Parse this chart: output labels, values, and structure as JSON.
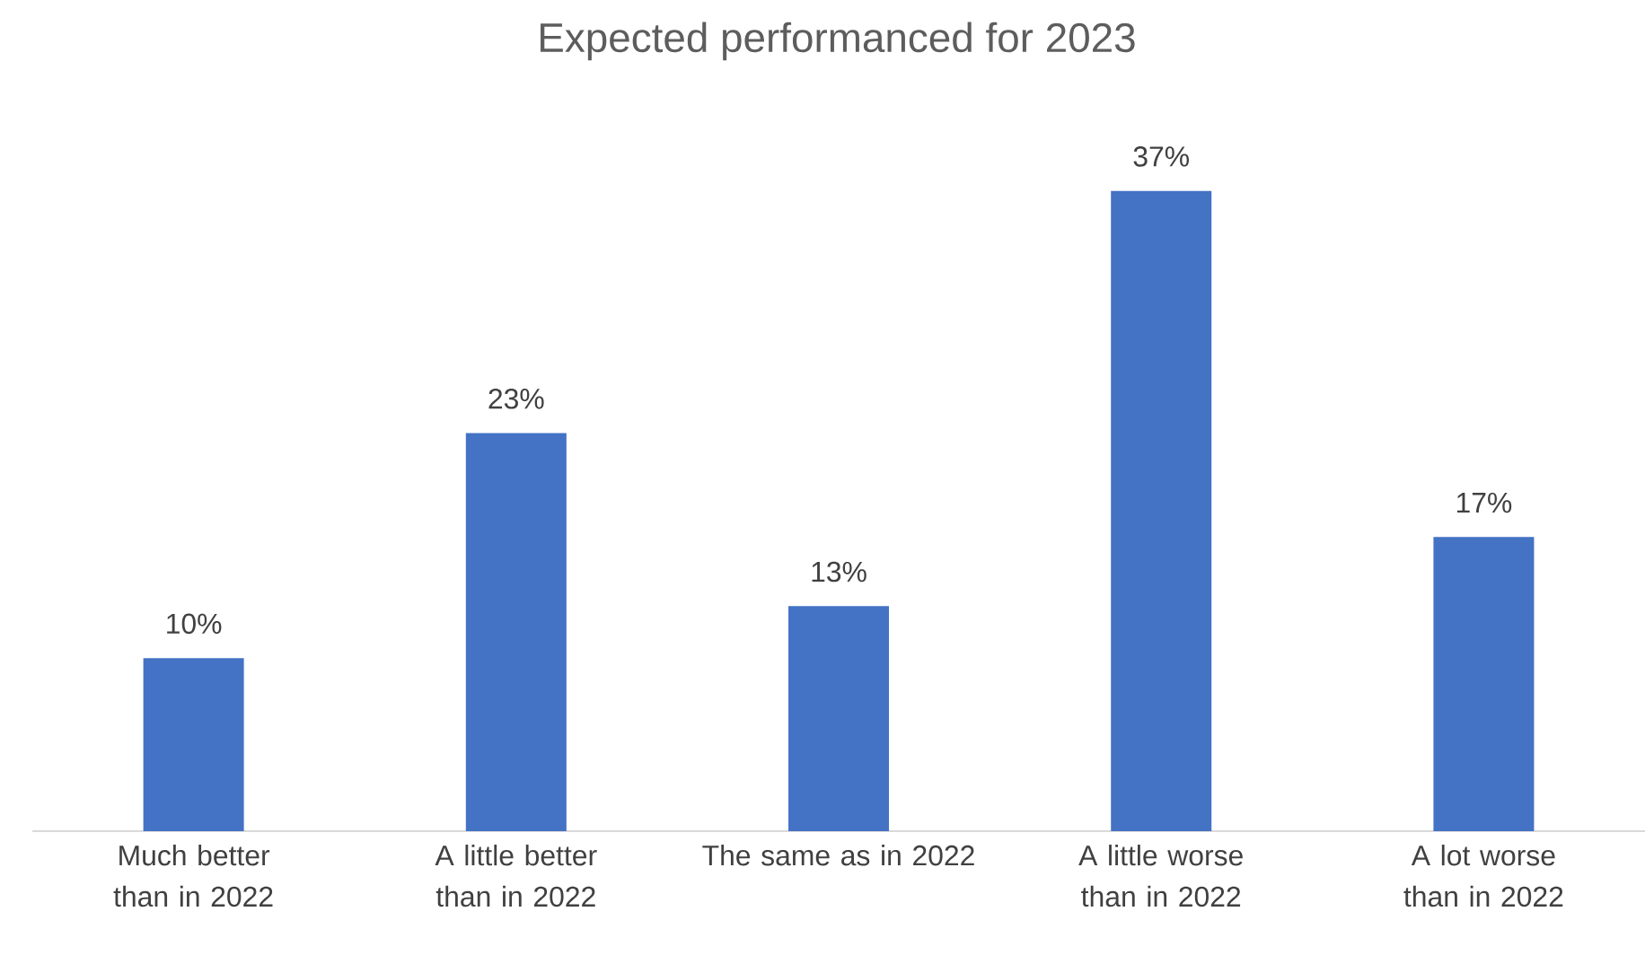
{
  "chart_data": {
    "type": "bar",
    "title": "Expected performanced for 2023",
    "categories": [
      "Much better than in 2022",
      "A little better than in 2022",
      "The same as in 2022",
      "A little worse than in 2022",
      "A lot worse than in 2022"
    ],
    "values": [
      10,
      23,
      13,
      37,
      17
    ],
    "value_labels": [
      "10%",
      "23%",
      "13%",
      "37%",
      "17%"
    ],
    "color": "#4472c4"
  }
}
